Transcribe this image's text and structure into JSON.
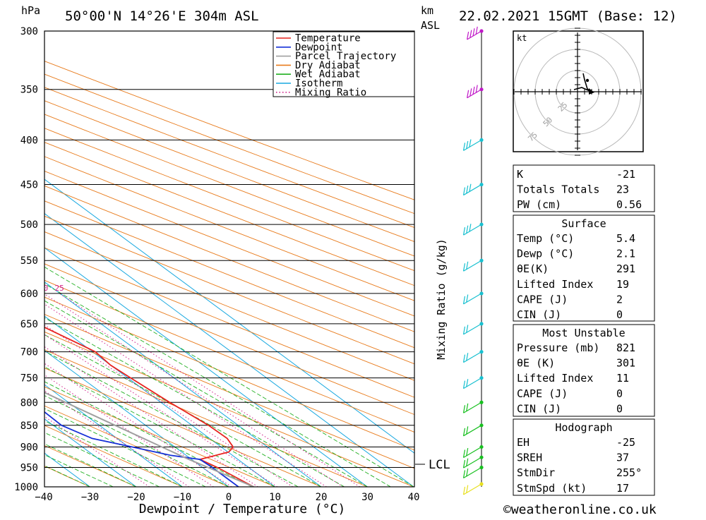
{
  "header": {
    "pressure_unit": "hPa",
    "location": "50°00'N  14°26'E  304m  ASL",
    "km_label": "km",
    "asl_label": "ASL",
    "datetime": "22.02.2021  15GMT  (Base: 12)"
  },
  "footer": {
    "xlabel": "Dewpoint / Temperature (°C)",
    "copyright": "©weatheronline.co.uk"
  },
  "mixing_ratio_axis_label": "Mixing Ratio (g/kg)",
  "lcl_label": "LCL",
  "colors": {
    "temperature": "#e8231f",
    "dewpoint": "#1530d8",
    "parcel": "#a0a0a0",
    "dry_adiabat": "#e87b1c",
    "wet_adiabat": "#22b022",
    "isotherm": "#18a8e0",
    "mixing_ratio": "#d0208a"
  },
  "chart_data": {
    "type": "line",
    "title": "",
    "xlabel": "Dewpoint / Temperature (°C)",
    "ylabel": "hPa",
    "xlim": [
      -40,
      40
    ],
    "pressure_levels": [
      300,
      350,
      400,
      450,
      500,
      550,
      600,
      650,
      700,
      750,
      800,
      850,
      900,
      950,
      1000
    ],
    "temperature_ticks": [
      -40,
      -30,
      -20,
      -10,
      0,
      10,
      20,
      30,
      40
    ],
    "legend": [
      "Temperature",
      "Dewpoint",
      "Parcel Trajectory",
      "Dry Adiabat",
      "Wet Adiabat",
      "Isotherm",
      "Mixing Ratio"
    ],
    "mixing_ratio_labels": [
      "1",
      "2",
      "3",
      "4",
      "6",
      "8",
      "10",
      "16",
      "20",
      "25"
    ],
    "series": [
      {
        "name": "Temperature",
        "points": [
          [
            1000,
            5.4
          ],
          [
            950,
            3.2
          ],
          [
            930,
            1.8
          ],
          [
            912,
            10.2
          ],
          [
            900,
            12.6
          ],
          [
            880,
            13.8
          ],
          [
            850,
            13.6
          ],
          [
            800,
            11.9
          ],
          [
            750,
            10.6
          ],
          [
            725,
            10.0
          ],
          [
            700,
            10.6
          ],
          [
            650,
            6.2
          ],
          [
            600,
            1.6
          ],
          [
            550,
            -4.8
          ],
          [
            500,
            -12.8
          ],
          [
            450,
            -21.0
          ],
          [
            400,
            -31.4
          ],
          [
            380,
            -36.0
          ],
          [
            350,
            -41.2
          ],
          [
            300,
            -52.0
          ]
        ]
      },
      {
        "name": "Dewpoint",
        "points": [
          [
            1000,
            2.1
          ],
          [
            950,
            2.1
          ],
          [
            930,
            1.8
          ],
          [
            920,
            -3.4
          ],
          [
            900,
            -9.2
          ],
          [
            880,
            -15.4
          ],
          [
            850,
            -18.2
          ],
          [
            800,
            -17.8
          ],
          [
            750,
            -21.6
          ],
          [
            725,
            -23.4
          ],
          [
            700,
            -16.0
          ],
          [
            650,
            -1.6
          ],
          [
            600,
            -6.6
          ],
          [
            550,
            -13.6
          ],
          [
            500,
            -21.2
          ],
          [
            450,
            -26.8
          ],
          [
            430,
            -28.2
          ],
          [
            390,
            -34.6
          ],
          [
            370,
            -36.6
          ],
          [
            350,
            -56.6
          ],
          [
            300,
            -64.0
          ]
        ]
      },
      {
        "name": "Parcel Trajectory",
        "points": [
          [
            1000,
            5.4
          ],
          [
            950,
            1.2
          ],
          [
            930,
            -0.6
          ],
          [
            900,
            -2.8
          ],
          [
            850,
            -6.6
          ],
          [
            800,
            -10.6
          ],
          [
            750,
            -14.8
          ],
          [
            700,
            -19.4
          ],
          [
            650,
            -24.4
          ],
          [
            600,
            -29.8
          ],
          [
            550,
            -35.6
          ],
          [
            500,
            -41.8
          ],
          [
            450,
            -48.8
          ],
          [
            400,
            -56.6
          ],
          [
            350,
            -65.2
          ],
          [
            300,
            -74.6
          ]
        ]
      }
    ],
    "lcl_pressure": 950,
    "wind_profile_pressures": [
      1000,
      950,
      925,
      900,
      850,
      800,
      750,
      700,
      650,
      600,
      550,
      500,
      450,
      400,
      350,
      300
    ]
  },
  "hodograph": {
    "unit": "kt",
    "ring_labels": [
      "25",
      "50",
      "75"
    ]
  },
  "indices": {
    "general": [
      {
        "label": "K",
        "value": "-21"
      },
      {
        "label": "Totals Totals",
        "value": "23"
      },
      {
        "label": "PW (cm)",
        "value": "0.56"
      }
    ],
    "surface": {
      "title": "Surface",
      "rows": [
        {
          "label": "Temp (°C)",
          "value": "5.4"
        },
        {
          "label": "Dewp (°C)",
          "value": "2.1"
        },
        {
          "label": "θE(K)",
          "value": "291"
        },
        {
          "label": "Lifted Index",
          "value": "19"
        },
        {
          "label": "CAPE (J)",
          "value": "2"
        },
        {
          "label": "CIN (J)",
          "value": "0"
        }
      ]
    },
    "most_unstable": {
      "title": "Most Unstable",
      "rows": [
        {
          "label": "Pressure (mb)",
          "value": "821"
        },
        {
          "label": "θE (K)",
          "value": "301"
        },
        {
          "label": "Lifted Index",
          "value": "11"
        },
        {
          "label": "CAPE (J)",
          "value": "0"
        },
        {
          "label": "CIN (J)",
          "value": "0"
        }
      ]
    },
    "hodograph": {
      "title": "Hodograph",
      "rows": [
        {
          "label": "EH",
          "value": "-25"
        },
        {
          "label": "SREH",
          "value": "37"
        },
        {
          "label": "StmDir",
          "value": "255°"
        },
        {
          "label": "StmSpd (kt)",
          "value": "17"
        }
      ]
    }
  }
}
